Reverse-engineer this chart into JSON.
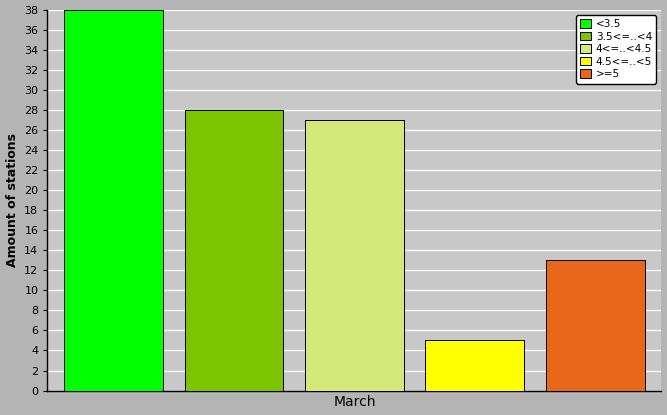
{
  "categories": [
    "<3.5",
    "3.5<=..<4",
    "4<=..<4.5",
    "4.5<=..<5",
    ">=5"
  ],
  "values": [
    38,
    28,
    27,
    5,
    13
  ],
  "colors": [
    "#00ff00",
    "#7dc400",
    "#d4e87a",
    "#ffff00",
    "#e8671a"
  ],
  "legend_labels": [
    "<3.5",
    "3.5<=..<4",
    "4<=..<4.5",
    "4.5<=..<5",
    ">=5"
  ],
  "xlabel": "March",
  "ylabel": "Amount of stations",
  "ylim": [
    0,
    38
  ],
  "yticks": [
    0,
    2,
    4,
    6,
    8,
    10,
    12,
    14,
    16,
    18,
    20,
    22,
    24,
    26,
    28,
    30,
    32,
    34,
    36,
    38
  ],
  "bg_color": "#b4b4b4",
  "plot_bg_color": "#c8c8c8",
  "fig_width": 6.67,
  "fig_height": 4.15,
  "dpi": 100,
  "bar_positions": [
    1,
    2,
    3,
    4,
    5
  ],
  "bar_width": 0.82
}
